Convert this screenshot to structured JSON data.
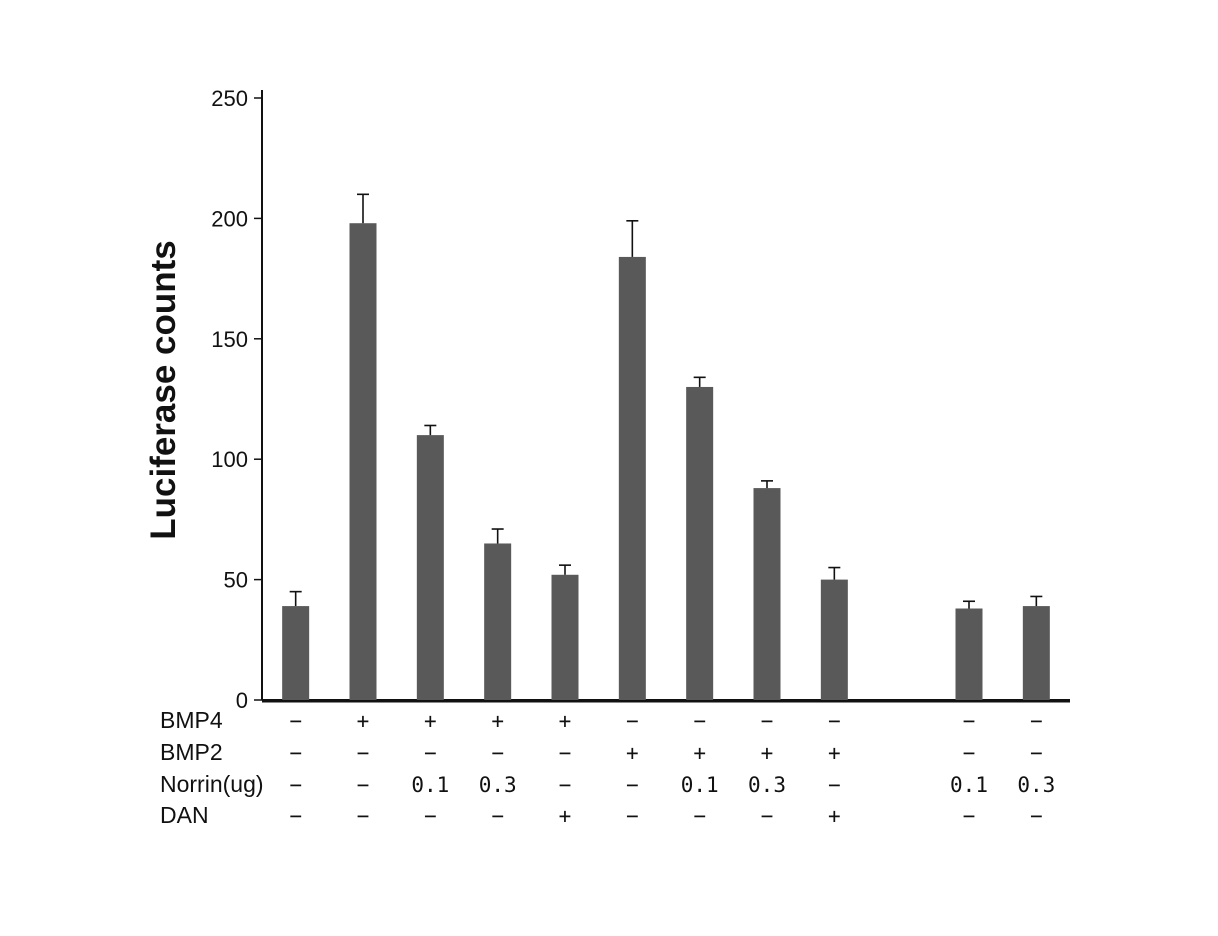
{
  "chart_data": {
    "type": "bar",
    "title": "",
    "ylabel": "Luciferase counts",
    "xlabel": "",
    "ylim": [
      0,
      250
    ],
    "yticks": [
      0,
      50,
      100,
      150,
      200,
      250
    ],
    "grid": false,
    "legend": "none",
    "bar_color": "#595959",
    "axis_color": "#111111",
    "values": [
      39,
      198,
      110,
      65,
      52,
      184,
      130,
      88,
      50,
      null,
      38,
      39
    ],
    "errors": [
      6,
      12,
      4,
      6,
      4,
      15,
      4,
      3,
      5,
      null,
      3,
      4
    ],
    "condition_rows": [
      {
        "label": "BMP4",
        "cells": [
          "−",
          "+",
          "+",
          "+",
          "+",
          "−",
          "−",
          "−",
          "−",
          "",
          "−",
          "−"
        ]
      },
      {
        "label": "BMP2",
        "cells": [
          "−",
          "−",
          "−",
          "−",
          "−",
          "+",
          "+",
          "+",
          "+",
          "",
          "−",
          "−"
        ]
      },
      {
        "label": "Norrin(ug)",
        "cells": [
          "−",
          "−",
          "0.1",
          "0.3",
          "−",
          "−",
          "0.1",
          "0.3",
          "−",
          "",
          "0.1",
          "0.3"
        ]
      },
      {
        "label": "DAN",
        "cells": [
          "−",
          "−",
          "−",
          "−",
          "+",
          "−",
          "−",
          "−",
          "+",
          "",
          "−",
          "−"
        ]
      }
    ]
  }
}
